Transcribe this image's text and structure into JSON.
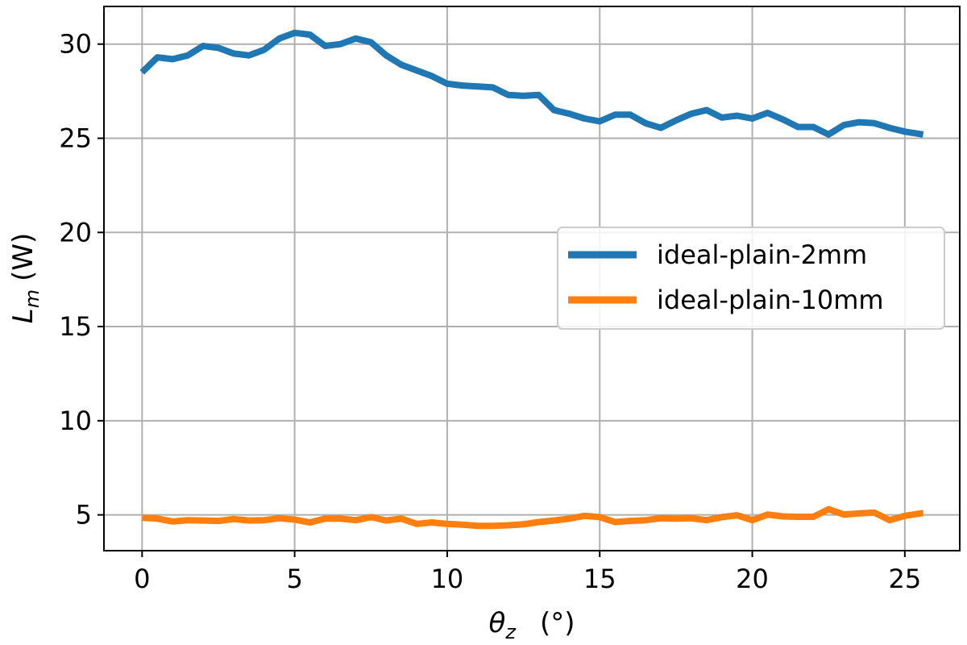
{
  "chart_data": {
    "type": "line",
    "xlabel_symbol": "θ",
    "xlabel_sub": "z",
    "xlabel_unit": "(°)",
    "ylabel_symbol": "L",
    "ylabel_sub": "m",
    "ylabel_unit": "(W)",
    "xlim": [
      -1.25,
      26.8
    ],
    "ylim": [
      3.1,
      32.0
    ],
    "xticks": [
      0,
      5,
      10,
      15,
      20,
      25
    ],
    "yticks": [
      5,
      10,
      15,
      20,
      25,
      30
    ],
    "grid": true,
    "legend_position": "center-right",
    "x": [
      0,
      0.5,
      1,
      1.5,
      2,
      2.5,
      3,
      3.5,
      4,
      4.5,
      5,
      5.5,
      6,
      6.5,
      7,
      7.5,
      8,
      8.5,
      9,
      9.5,
      10,
      10.5,
      11,
      11.5,
      12,
      12.5,
      13,
      13.5,
      14,
      14.5,
      15,
      15.5,
      16,
      16.5,
      17,
      17.5,
      18,
      18.5,
      19,
      19.5,
      20,
      20.5,
      21,
      21.5,
      22,
      22.5,
      23,
      23.5,
      24,
      24.5,
      25,
      25.6
    ],
    "series": [
      {
        "name": "ideal-plain-2mm",
        "color": "#1f77b4",
        "values": [
          28.5,
          29.3,
          29.2,
          29.4,
          29.9,
          29.8,
          29.5,
          29.4,
          29.7,
          30.3,
          30.6,
          30.5,
          29.9,
          30.0,
          30.3,
          30.1,
          29.4,
          28.9,
          28.6,
          28.3,
          27.9,
          27.8,
          27.75,
          27.7,
          27.3,
          27.25,
          27.3,
          26.5,
          26.3,
          26.05,
          25.9,
          26.25,
          26.25,
          25.8,
          25.55,
          25.95,
          26.3,
          26.5,
          26.1,
          26.2,
          26.05,
          26.35,
          26.0,
          25.6,
          25.6,
          25.2,
          25.7,
          25.85,
          25.8,
          25.55,
          25.35,
          25.2
        ]
      },
      {
        "name": "ideal-plain-10mm",
        "color": "#ff7f0e",
        "values": [
          4.85,
          4.8,
          4.65,
          4.72,
          4.7,
          4.68,
          4.78,
          4.7,
          4.72,
          4.82,
          4.75,
          4.6,
          4.8,
          4.8,
          4.72,
          4.88,
          4.7,
          4.8,
          4.52,
          4.6,
          4.52,
          4.48,
          4.42,
          4.42,
          4.45,
          4.5,
          4.62,
          4.7,
          4.8,
          4.95,
          4.88,
          4.62,
          4.68,
          4.72,
          4.82,
          4.8,
          4.82,
          4.72,
          4.88,
          4.98,
          4.72,
          5.02,
          4.92,
          4.9,
          4.9,
          5.3,
          5.02,
          5.08,
          5.12,
          4.72,
          4.95,
          5.1
        ]
      }
    ]
  }
}
